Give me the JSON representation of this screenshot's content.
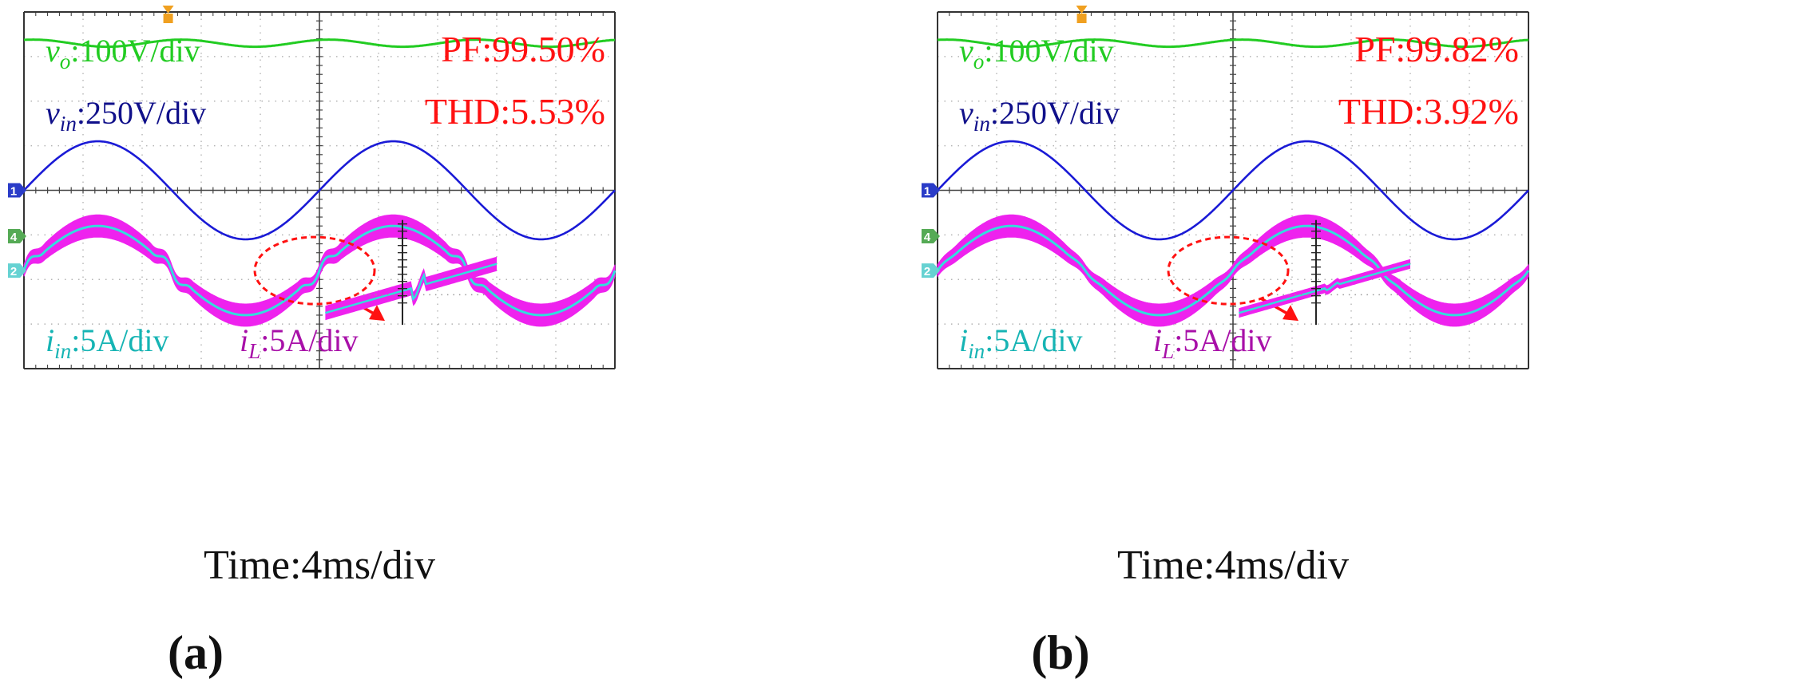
{
  "figure": {
    "panels": [
      {
        "id": "a",
        "caption": "(a)",
        "time_label": "Time:4ms/div",
        "vo": {
          "sym": "v",
          "sub": "o",
          "scale": ":100V/div"
        },
        "vin": {
          "sym": "v",
          "sub": "in",
          "scale": ":250V/div"
        },
        "pf": "PF:99.50%",
        "thd": "THD:5.53%",
        "iin": {
          "sym": "i",
          "sub": "in",
          "scale": ":5A/div"
        },
        "il": {
          "sym": "i",
          "sub": "L",
          "scale": ":5A/div"
        },
        "channel_markers": [
          "1",
          "4",
          "2"
        ],
        "zero_crossing_distortion": "high"
      },
      {
        "id": "b",
        "caption": "(b)",
        "time_label": "Time:4ms/div",
        "vo": {
          "sym": "v",
          "sub": "o",
          "scale": ":100V/div"
        },
        "vin": {
          "sym": "v",
          "sub": "in",
          "scale": ":250V/div"
        },
        "pf": "PF:99.82%",
        "thd": "THD:3.92%",
        "iin": {
          "sym": "i",
          "sub": "in",
          "scale": ":5A/div"
        },
        "il": {
          "sym": "i",
          "sub": "L",
          "scale": ":5A/div"
        },
        "channel_markers": [
          "1",
          "4",
          "2"
        ],
        "zero_crossing_distortion": "low"
      }
    ],
    "colors": {
      "vo": "#22cc22",
      "vin": "#1a1ad6",
      "iin": "#33dddd",
      "il": "#ee22ee",
      "annotation": "#ff1111",
      "grid": "#b4b4b4",
      "axis": "#444444",
      "ch1": "#2a3cc8",
      "ch4": "#55aa55",
      "ch2": "#66d2d2",
      "label_vin": "#10108a",
      "label_iin": "#16b4b4",
      "label_il": "#a810a8"
    }
  },
  "chart_data": [
    {
      "type": "line",
      "title": "(a)",
      "xlabel": "Time:4ms/div",
      "x_divisions": 10,
      "y_divisions": 8,
      "x_unit_per_div": "4ms",
      "series": [
        {
          "name": "vo",
          "scale": "100V/div",
          "shape": "dc with small 100Hz ripple",
          "offset_div": 3.3,
          "amplitude_div": 0.08
        },
        {
          "name": "vin",
          "scale": "250V/div",
          "shape": "sine",
          "period_div": 5,
          "offset_div": 0,
          "amplitude_div": 1.1
        },
        {
          "name": "iin",
          "scale": "5A/div",
          "shape": "sine",
          "period_div": 5,
          "offset_div": -1.8,
          "amplitude_div": 1.0
        },
        {
          "name": "iL",
          "scale": "5A/div",
          "shape": "sine with switching ripple band",
          "period_div": 5,
          "offset_div": -1.8,
          "amplitude_div": 1.0
        }
      ],
      "annotations": [
        "PF:99.50%",
        "THD:5.53%"
      ]
    },
    {
      "type": "line",
      "title": "(b)",
      "xlabel": "Time:4ms/div",
      "x_divisions": 10,
      "y_divisions": 8,
      "x_unit_per_div": "4ms",
      "series": [
        {
          "name": "vo",
          "scale": "100V/div",
          "shape": "dc with small 100Hz ripple",
          "offset_div": 3.3,
          "amplitude_div": 0.08
        },
        {
          "name": "vin",
          "scale": "250V/div",
          "shape": "sine",
          "period_div": 5,
          "offset_div": 0,
          "amplitude_div": 1.1
        },
        {
          "name": "iin",
          "scale": "5A/div",
          "shape": "sine",
          "period_div": 5,
          "offset_div": -1.8,
          "amplitude_div": 1.0
        },
        {
          "name": "iL",
          "scale": "5A/div",
          "shape": "sine with switching ripple band",
          "period_div": 5,
          "offset_div": -1.8,
          "amplitude_div": 1.0
        }
      ],
      "annotations": [
        "PF:99.82%",
        "THD:3.92%"
      ]
    }
  ]
}
